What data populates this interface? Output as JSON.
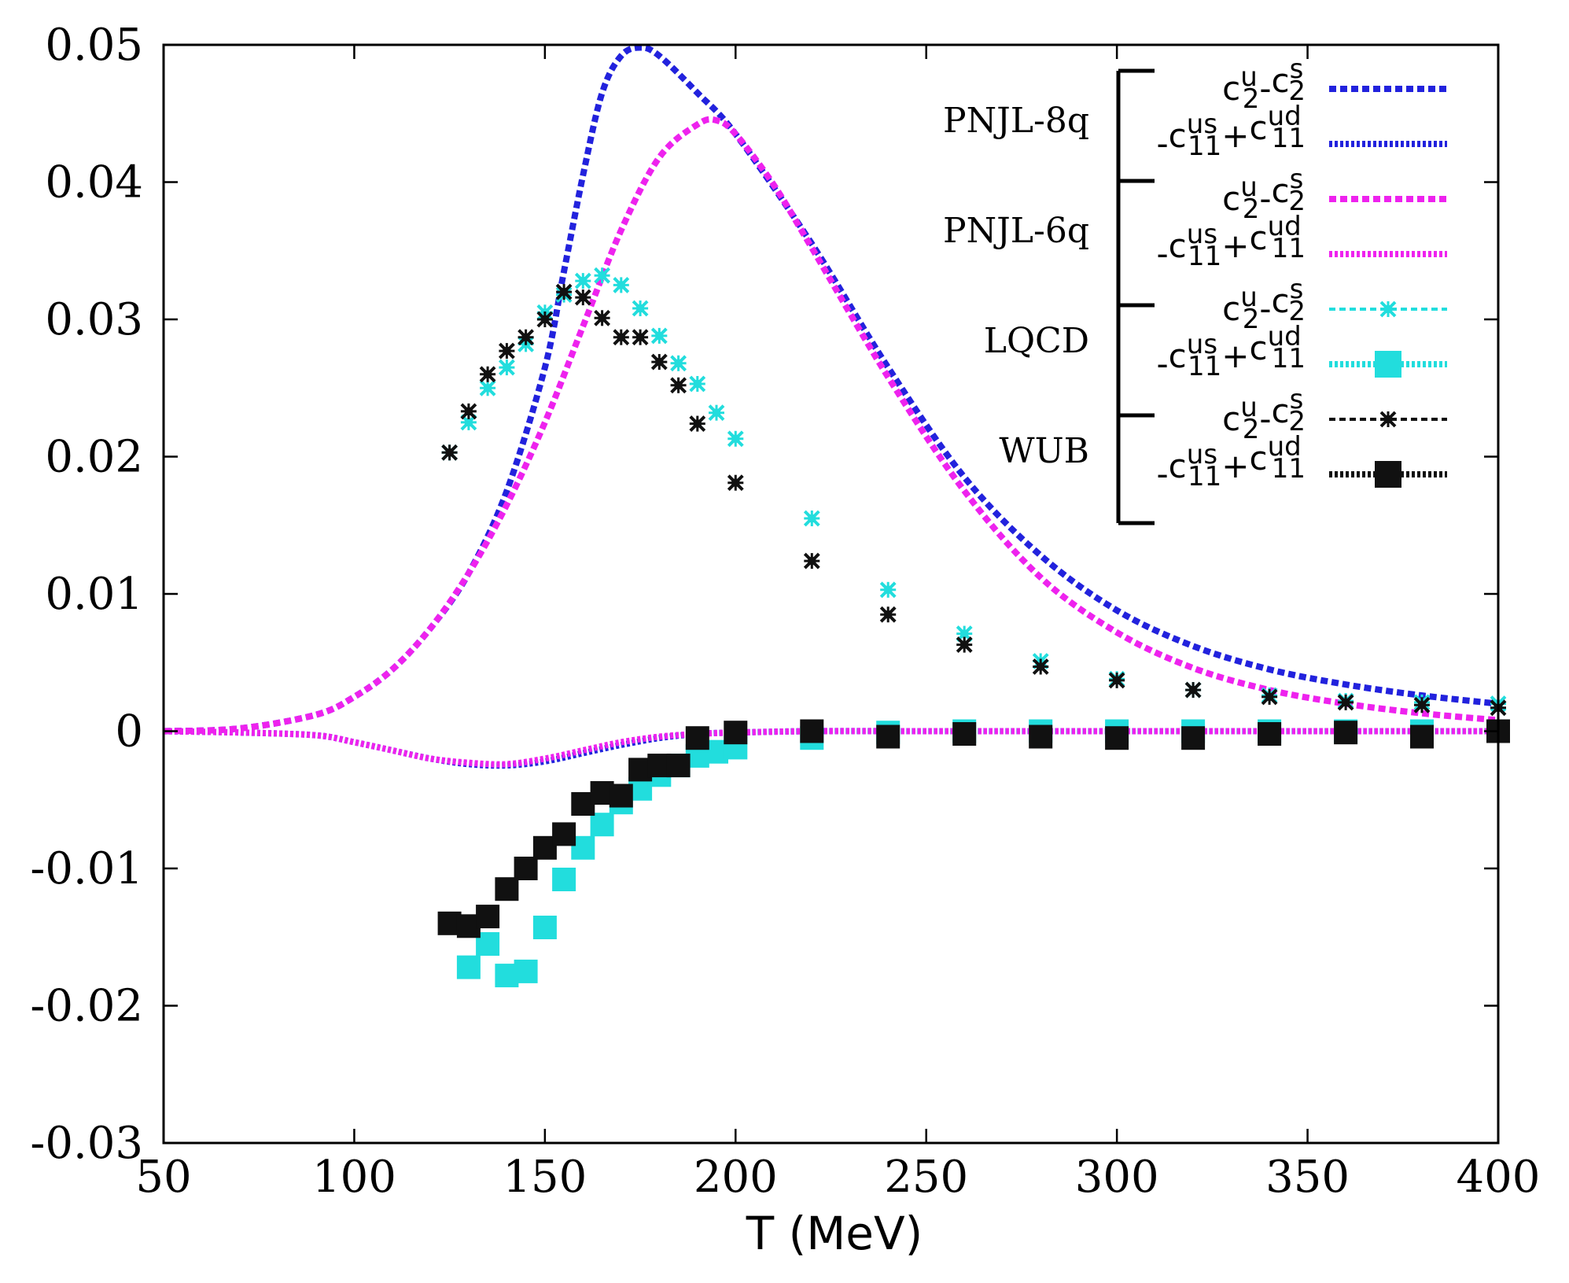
{
  "chart_data": {
    "type": "line",
    "title": "",
    "xlabel": "T (MeV)",
    "ylabel": "",
    "xlim": [
      50,
      400
    ],
    "ylim": [
      -0.03,
      0.05
    ],
    "grid": false,
    "legend_position": "top-right",
    "x_ticks": [
      "50",
      "100",
      "150",
      "200",
      "250",
      "300",
      "350",
      "400"
    ],
    "y_ticks": [
      "-0.03",
      "-0.02",
      "-0.01",
      "0",
      "0.01",
      "0.02",
      "0.03",
      "0.04",
      "0.05"
    ],
    "legend": {
      "key_upper": {
        "base": "c",
        "a_sup": "u",
        "a_sub": "2",
        "op": "-",
        "b_sup": "s",
        "b_sub": "2"
      },
      "key_lower": {
        "prefix": "-",
        "a_sup": "us",
        "a_sub": "11",
        "op": "+",
        "b_sup": "ud",
        "b_sub": "11"
      },
      "groups": [
        "PNJL-8q",
        "PNJL-6q",
        "LQCD",
        "WUB"
      ]
    },
    "series": [
      {
        "group": "PNJL-8q",
        "key": "upper",
        "style": "line",
        "color": "#2222dd",
        "x": [
          50,
          70,
          90,
          100,
          110,
          120,
          130,
          140,
          150,
          155,
          160,
          165,
          170,
          175,
          180,
          190,
          200,
          220,
          240,
          260,
          280,
          300,
          320,
          340,
          360,
          380,
          400
        ],
        "y": [
          0,
          0.0002,
          0.0012,
          0.0025,
          0.0045,
          0.0075,
          0.0115,
          0.0175,
          0.0265,
          0.0335,
          0.0405,
          0.0465,
          0.0492,
          0.0498,
          0.0492,
          0.0465,
          0.0435,
          0.0355,
          0.0265,
          0.0185,
          0.0128,
          0.0088,
          0.0062,
          0.0045,
          0.0034,
          0.0026,
          0.002
        ]
      },
      {
        "group": "PNJL-8q",
        "key": "lower",
        "style": "line",
        "color": "#2222dd",
        "x": [
          50,
          70,
          90,
          100,
          110,
          120,
          130,
          140,
          150,
          160,
          170,
          180,
          190,
          200,
          220,
          250,
          300,
          350,
          400
        ],
        "y": [
          0,
          -0.0001,
          -0.0003,
          -0.0008,
          -0.0014,
          -0.002,
          -0.0024,
          -0.0025,
          -0.0022,
          -0.0016,
          -0.001,
          -0.0005,
          -0.0002,
          -0.0001,
          0,
          0,
          0,
          0,
          0
        ]
      },
      {
        "group": "PNJL-6q",
        "key": "upper",
        "style": "line",
        "color": "#ee22ee",
        "x": [
          50,
          70,
          90,
          100,
          110,
          120,
          130,
          140,
          150,
          160,
          170,
          180,
          190,
          195,
          200,
          210,
          220,
          240,
          260,
          280,
          300,
          320,
          340,
          360,
          380,
          400
        ],
        "y": [
          0,
          0.0002,
          0.0012,
          0.0025,
          0.0045,
          0.0075,
          0.0115,
          0.0165,
          0.0225,
          0.0295,
          0.0365,
          0.0418,
          0.0442,
          0.0445,
          0.0435,
          0.0398,
          0.0352,
          0.0258,
          0.0175,
          0.0112,
          0.0072,
          0.0046,
          0.003,
          0.002,
          0.0013,
          0.0008
        ]
      },
      {
        "group": "PNJL-6q",
        "key": "lower",
        "style": "line",
        "color": "#ee22ee",
        "x": [
          50,
          70,
          90,
          100,
          110,
          120,
          130,
          140,
          150,
          160,
          170,
          180,
          190,
          200,
          220,
          250,
          300,
          350,
          400
        ],
        "y": [
          0,
          -0.0001,
          -0.0003,
          -0.0008,
          -0.0014,
          -0.002,
          -0.0023,
          -0.0024,
          -0.002,
          -0.0014,
          -0.0008,
          -0.0004,
          -0.0002,
          -0.0001,
          0,
          0,
          0,
          0,
          0
        ]
      },
      {
        "group": "LQCD",
        "key": "upper",
        "style": "points",
        "color": "#22dddd",
        "x": [
          125,
          130,
          135,
          140,
          145,
          150,
          155,
          160,
          165,
          170,
          175,
          180,
          185,
          190,
          195,
          200,
          220,
          240,
          260,
          280,
          300,
          320,
          340,
          360,
          380,
          400
        ],
        "y": [
          0.0203,
          0.0225,
          0.025,
          0.0265,
          0.0282,
          0.0305,
          0.0318,
          0.0328,
          0.0332,
          0.0325,
          0.0308,
          0.0288,
          0.0268,
          0.0253,
          0.0232,
          0.0213,
          0.0155,
          0.0103,
          0.0071,
          0.0051,
          0.0038,
          0.003,
          0.0026,
          0.0022,
          0.0021,
          0.002
        ]
      },
      {
        "group": "LQCD",
        "key": "lower",
        "style": "squares",
        "color": "#22dddd",
        "x": [
          130,
          135,
          140,
          145,
          150,
          155,
          160,
          165,
          170,
          175,
          180,
          185,
          190,
          195,
          200,
          220,
          240,
          260,
          280,
          300,
          320,
          340,
          360,
          380,
          400
        ],
        "y": [
          -0.0172,
          -0.0155,
          -0.0178,
          -0.0175,
          -0.0143,
          -0.0108,
          -0.0085,
          -0.0068,
          -0.0052,
          -0.0042,
          -0.0032,
          -0.0025,
          -0.0018,
          -0.0015,
          -0.0012,
          -0.0005,
          -0.0001,
          0,
          0,
          0,
          0,
          0,
          0,
          0,
          0
        ]
      },
      {
        "group": "WUB",
        "key": "upper",
        "style": "points",
        "color": "#111111",
        "x": [
          125,
          130,
          135,
          140,
          145,
          150,
          155,
          160,
          165,
          170,
          175,
          180,
          185,
          190,
          200,
          220,
          240,
          260,
          280,
          300,
          320,
          340,
          360,
          380,
          400
        ],
        "y": [
          0.0203,
          0.0233,
          0.026,
          0.0277,
          0.0287,
          0.03,
          0.032,
          0.0316,
          0.0301,
          0.0287,
          0.0287,
          0.0269,
          0.0252,
          0.0224,
          0.0181,
          0.0124,
          0.0085,
          0.0063,
          0.0047,
          0.0037,
          0.003,
          0.0025,
          0.0021,
          0.0019,
          0.0017
        ]
      },
      {
        "group": "WUB",
        "key": "lower",
        "style": "squares",
        "color": "#111111",
        "x": [
          125,
          130,
          135,
          140,
          145,
          150,
          155,
          160,
          165,
          170,
          175,
          180,
          185,
          190,
          200,
          220,
          240,
          260,
          280,
          300,
          320,
          340,
          360,
          380,
          400
        ],
        "y": [
          -0.014,
          -0.0142,
          -0.0135,
          -0.0115,
          -0.01,
          -0.0085,
          -0.0075,
          -0.0053,
          -0.0045,
          -0.0047,
          -0.0028,
          -0.0025,
          -0.0025,
          -0.0005,
          -0.0001,
          0,
          -0.0004,
          -0.0002,
          -0.0004,
          -0.0005,
          -0.0005,
          -0.0002,
          -0.0001,
          -0.0004,
          0
        ]
      }
    ]
  }
}
